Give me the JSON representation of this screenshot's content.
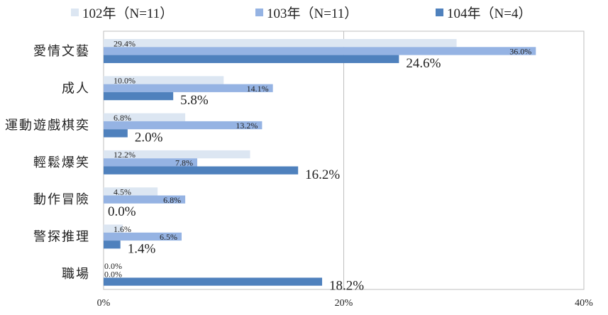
{
  "chart_data": {
    "type": "bar",
    "orientation": "horizontal",
    "categories": [
      "愛情文藝",
      "成人",
      "運動遊戲棋奕",
      "輕鬆爆笑",
      "動作冒險",
      "警探推理",
      "職場"
    ],
    "series": [
      {
        "name": "102年（N=11）",
        "color": "#dce6f2",
        "values": [
          29.4,
          10.0,
          6.8,
          12.2,
          4.5,
          1.6,
          0.0
        ],
        "labels": [
          "29.4%",
          "10.0%",
          "6.8%",
          "12.2%",
          "4.5%",
          "1.6%",
          "0.0%"
        ]
      },
      {
        "name": "103年（N=11）",
        "color": "#95b3e3",
        "values": [
          36.0,
          14.1,
          13.2,
          7.8,
          6.8,
          6.5,
          0.0
        ],
        "labels": [
          "36.0%",
          "14.1%",
          "13.2%",
          "7.8%",
          "6.8%",
          "6.5%",
          "0.0%"
        ]
      },
      {
        "name": "104年（N=4）",
        "color": "#4f81bd",
        "values": [
          24.6,
          5.8,
          2.0,
          16.2,
          0.0,
          1.4,
          18.2
        ],
        "labels": [
          "24.6%",
          "5.8%",
          "2.0%",
          "16.2%",
          "0.0%",
          "1.4%",
          "18.2%"
        ]
      }
    ],
    "xlim": [
      0,
      40
    ],
    "xticks": [
      "0%",
      "20%",
      "40%"
    ],
    "grid": true,
    "legend_position": "top"
  }
}
